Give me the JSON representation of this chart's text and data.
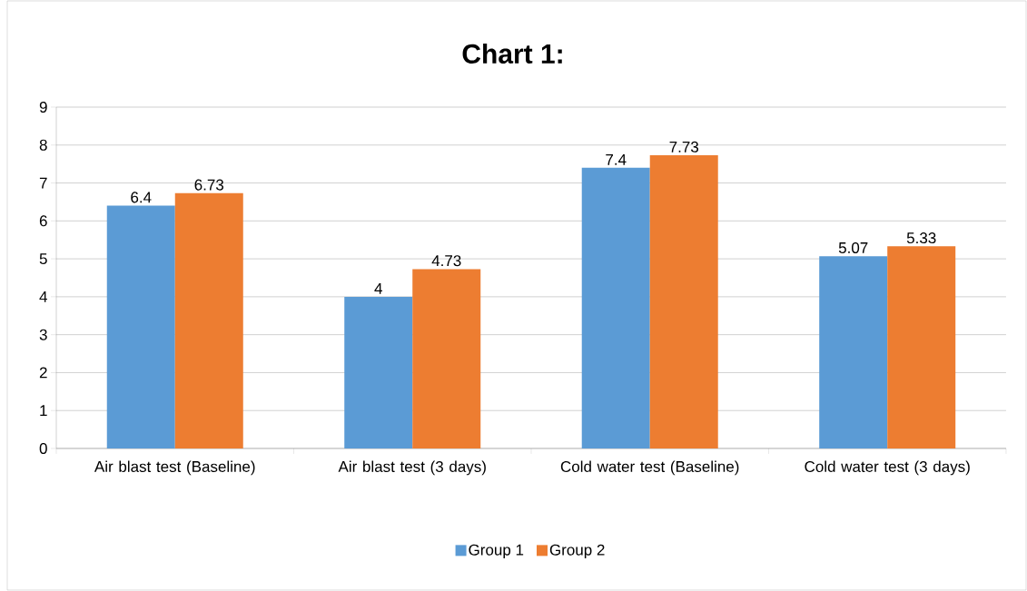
{
  "chart_data": {
    "type": "bar",
    "title": "Chart 1:",
    "categories": [
      "Air blast test (Baseline)",
      "Air blast test (3 days)",
      "Cold water test (Baseline)",
      "Cold water test (3 days)"
    ],
    "series": [
      {
        "name": "Group 1",
        "color": "#5b9bd5",
        "values": [
          6.4,
          4,
          7.4,
          5.07
        ]
      },
      {
        "name": "Group 2",
        "color": "#ed7d31",
        "values": [
          6.73,
          4.73,
          7.73,
          5.33
        ]
      }
    ],
    "ylim": [
      0,
      9
    ],
    "yticks": [
      0,
      1,
      2,
      3,
      4,
      5,
      6,
      7,
      8,
      9
    ],
    "grid": "y",
    "legend": "bottom",
    "data_labels": true
  }
}
